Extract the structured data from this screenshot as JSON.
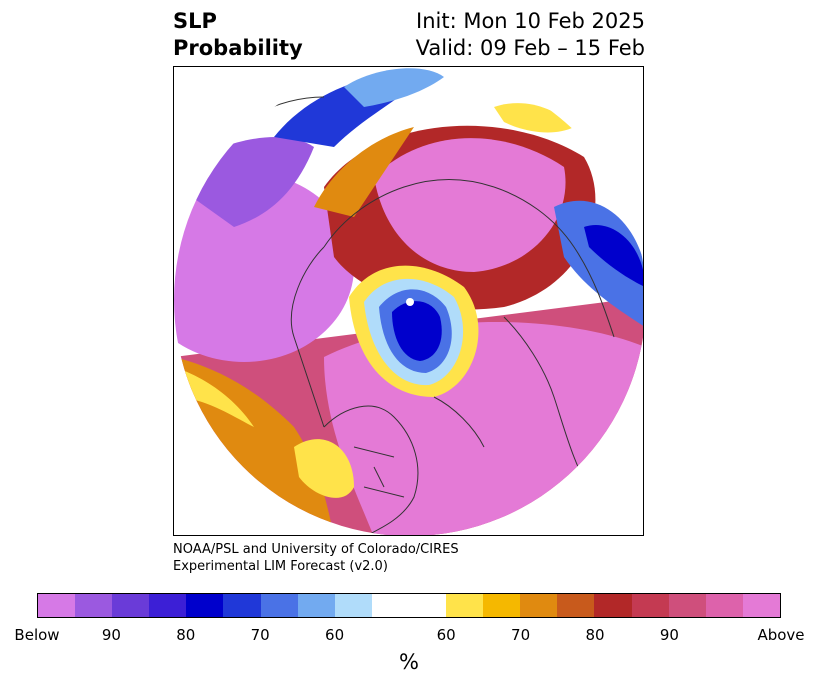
{
  "title": {
    "left_line1": "SLP",
    "left_line2": "Probability",
    "init": "Init: Mon 10 Feb 2025",
    "valid": "Valid: 09 Feb – 15 Feb"
  },
  "credit": {
    "line1": "NOAA/PSL and University of Colorado/CIRES",
    "line2": "Experimental LIM Forecast (v2.0)"
  },
  "colorbar": {
    "colors": [
      "#d679e6",
      "#9b59e0",
      "#6a3bd8",
      "#3c1fd6",
      "#0000cc",
      "#2038d8",
      "#4a72e6",
      "#72aaf0",
      "#b0dcfa",
      "#ffffff",
      "#ffffff",
      "#ffe34a",
      "#f5b800",
      "#e08a10",
      "#c85a1c",
      "#b22828",
      "#c43a52",
      "#cf4f7c",
      "#dd62ab",
      "#e47ad6"
    ],
    "ticks": [
      "Below",
      "90",
      "80",
      "70",
      "60",
      "60",
      "70",
      "80",
      "90",
      "Above"
    ],
    "unit": "%"
  },
  "map_colors": {
    "magenta": "#d679e6",
    "pink": "#e47ad6",
    "rose": "#cf4f7c",
    "crimson": "#b22828",
    "orange": "#e08a10",
    "yellow": "#ffe34a",
    "blue": "#0000cc",
    "midblue": "#4a72e6",
    "lightblue": "#b0dcfa",
    "purple": "#6a3bd8"
  }
}
